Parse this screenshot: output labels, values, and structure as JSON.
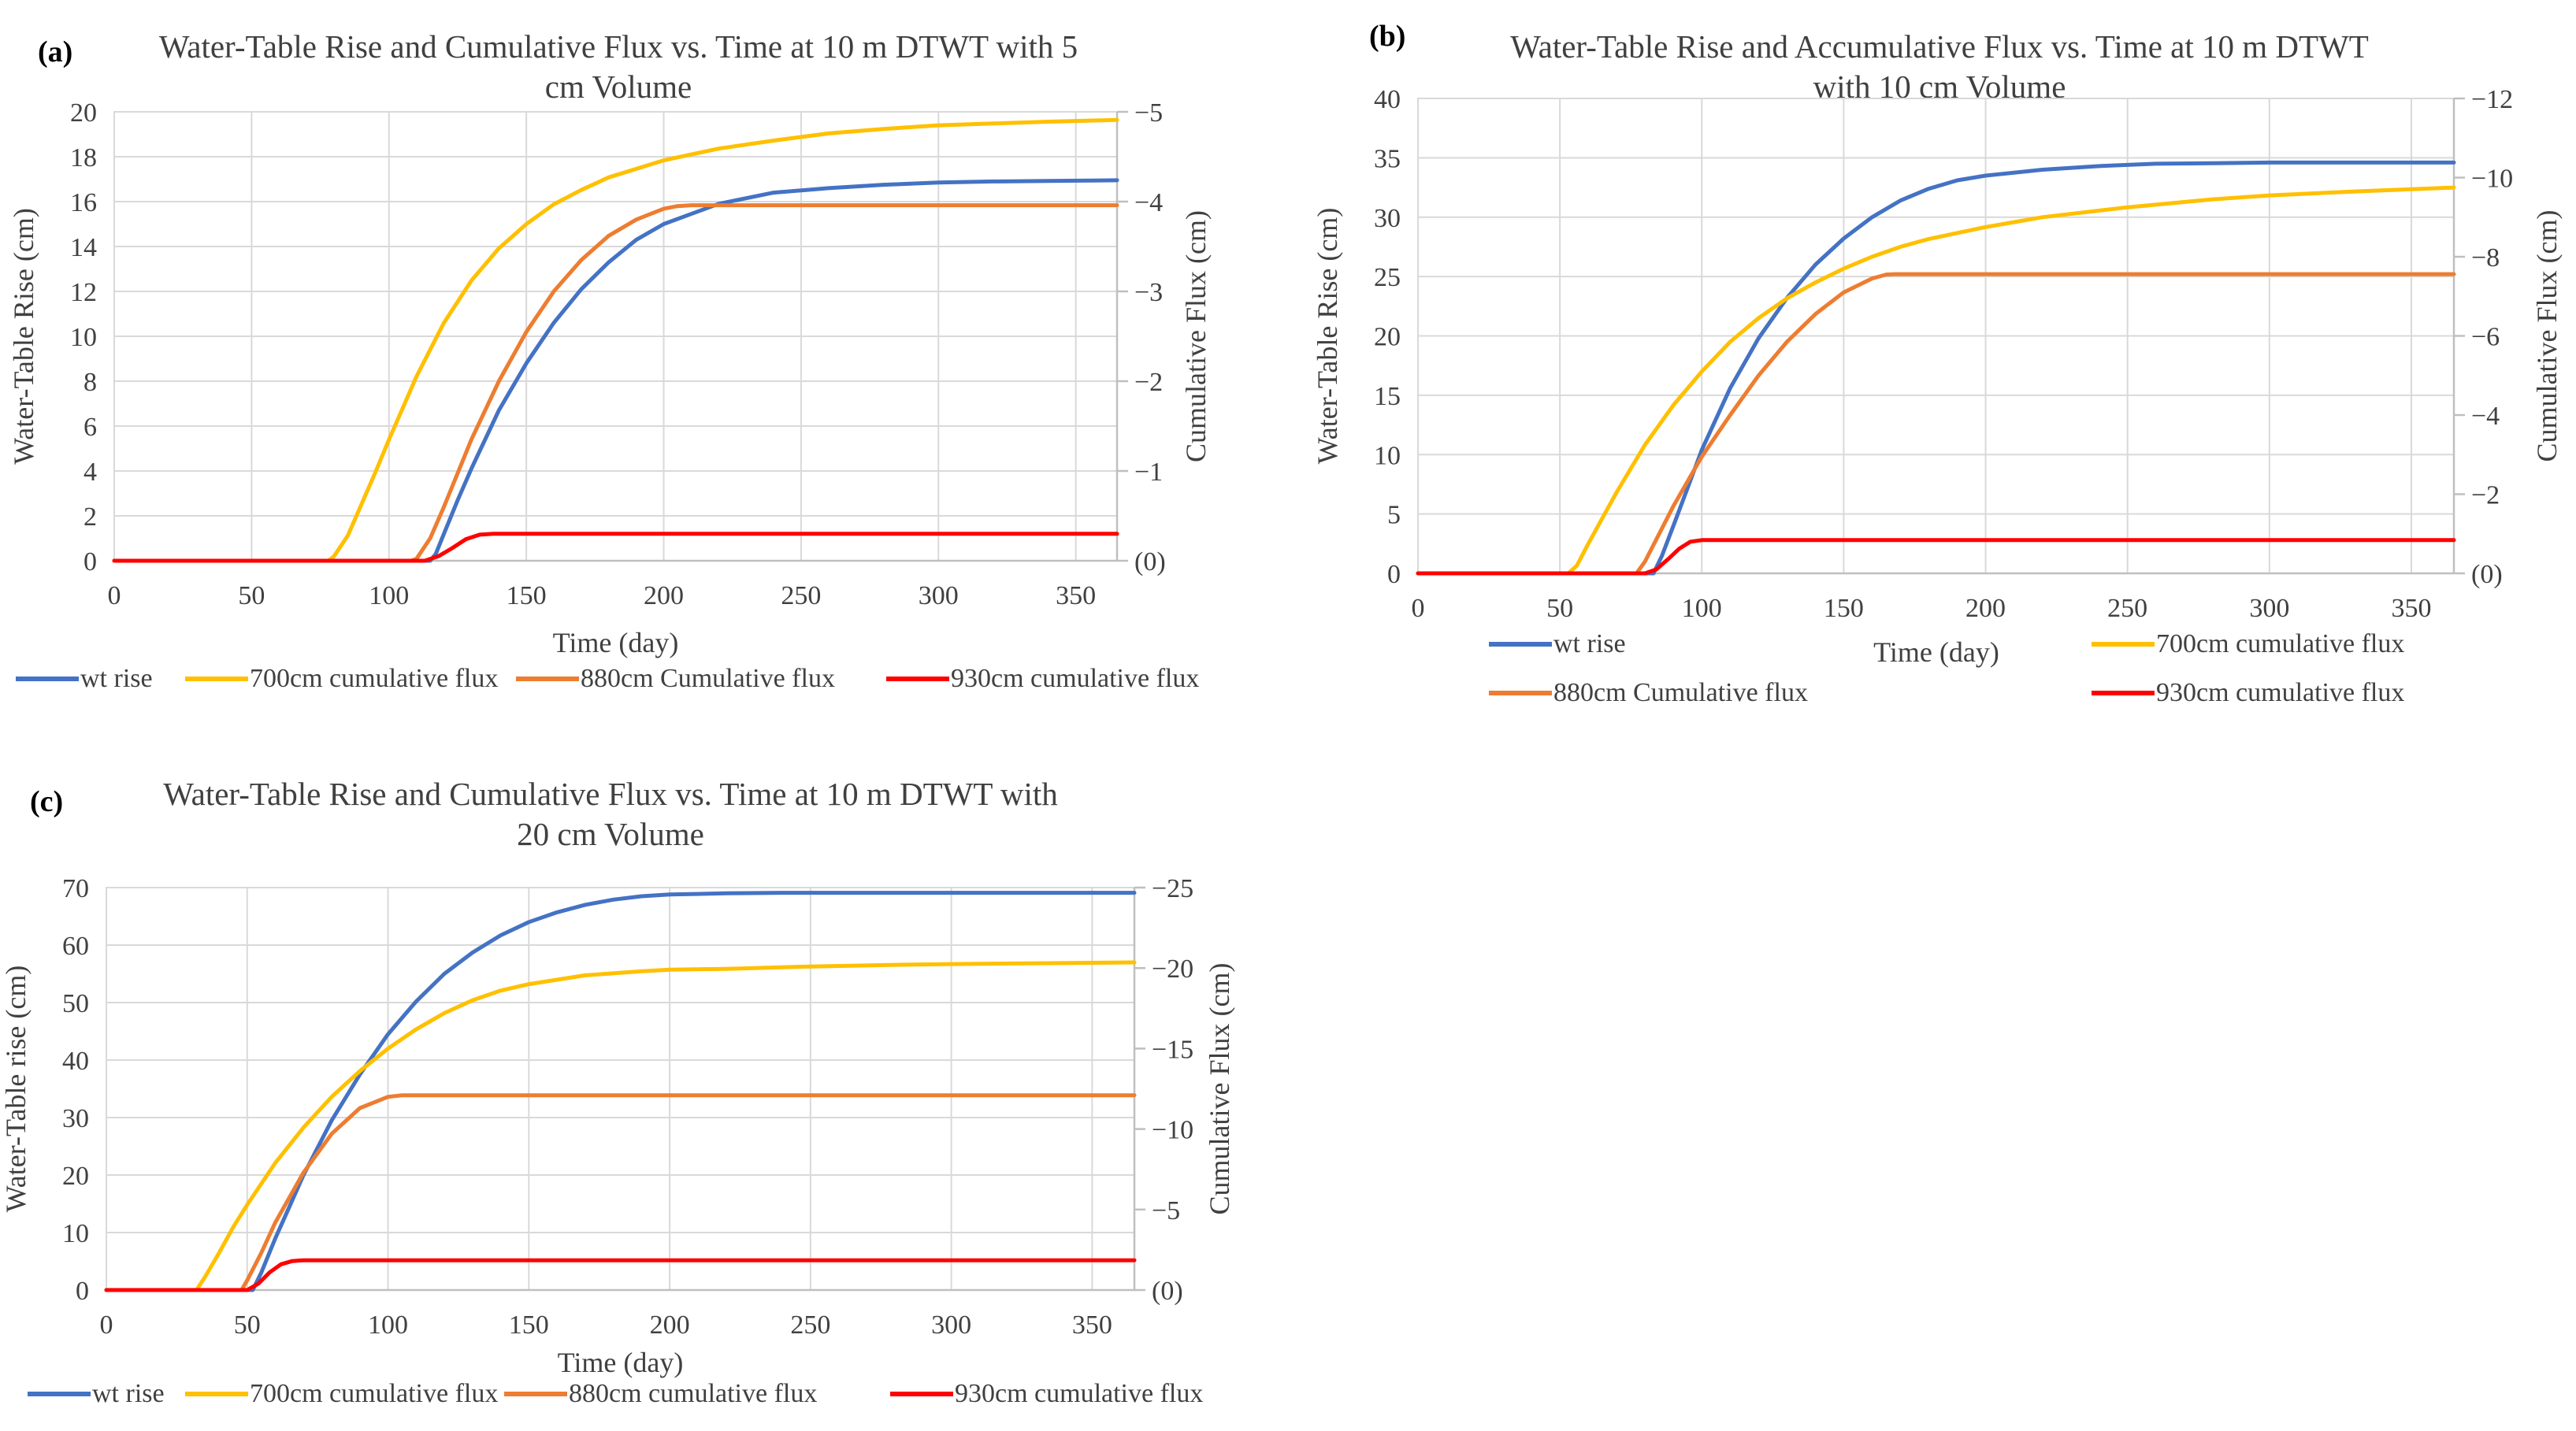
{
  "colors": {
    "wt": "#4472C4",
    "f700": "#FFC000",
    "f880": "#ED7D31",
    "f930": "#FF0000",
    "grid": "#D9D9D9",
    "axis": "#BFBFBF",
    "text": "#404040"
  },
  "chart_data": [
    {
      "type": "line",
      "panel_label": "(a)",
      "title": "Water-Table Rise and Cumulative Flux vs. Time at 10 m DTWT with 5 cm Volume",
      "title_lines": [
        "Water-Table Rise and Cumulative Flux vs. Time at 10 m DTWT with 5",
        "cm Volume"
      ],
      "xlabel": "Time (day)",
      "ylabel": "Water-Table Rise (cm)",
      "y2label": "Cumulative Flux (cm)",
      "xlim": [
        0,
        365
      ],
      "ylim": [
        0,
        20
      ],
      "y2lim": [
        0,
        -5
      ],
      "xticks": [
        0,
        50,
        100,
        150,
        200,
        250,
        300,
        350
      ],
      "yticks": [
        0,
        2,
        4,
        6,
        8,
        10,
        12,
        14,
        16,
        18,
        20
      ],
      "y2ticks": [
        0,
        -1,
        -2,
        -3,
        -4,
        -5
      ],
      "y2ticklabels": [
        "(0)",
        "−1",
        "−2",
        "−3",
        "−4",
        "−5"
      ],
      "grid": true,
      "legend_position": "bottom",
      "series": [
        {
          "name": "wt rise",
          "axis": "y1",
          "color_key": "wt",
          "x": [
            0,
            115,
            117,
            120,
            125,
            130,
            140,
            150,
            160,
            170,
            180,
            190,
            200,
            220,
            240,
            260,
            280,
            300,
            320,
            340,
            365
          ],
          "y": [
            0,
            0,
            0.3,
            1.2,
            2.7,
            4.1,
            6.7,
            8.8,
            10.6,
            12.1,
            13.3,
            14.3,
            15.0,
            15.9,
            16.4,
            16.6,
            16.75,
            16.85,
            16.9,
            16.92,
            16.95
          ]
        },
        {
          "name": "700cm cumulative flux",
          "axis": "y2",
          "color_key": "f700",
          "x": [
            0,
            78,
            80,
            85,
            90,
            95,
            100,
            110,
            120,
            130,
            140,
            150,
            160,
            170,
            180,
            200,
            220,
            240,
            260,
            280,
            300,
            320,
            340,
            365
          ],
          "y": [
            0,
            0,
            -0.05,
            -0.28,
            -0.63,
            -0.98,
            -1.35,
            -2.05,
            -2.65,
            -3.12,
            -3.48,
            -3.75,
            -3.97,
            -4.13,
            -4.27,
            -4.46,
            -4.59,
            -4.68,
            -4.76,
            -4.81,
            -4.85,
            -4.87,
            -4.89,
            -4.91
          ]
        },
        {
          "name": "880cm Cumulative flux",
          "axis": "y2",
          "color_key": "f880",
          "x": [
            0,
            108,
            110,
            115,
            120,
            130,
            140,
            150,
            160,
            170,
            180,
            190,
            200,
            205,
            210,
            365
          ],
          "y": [
            0,
            0,
            -0.02,
            -0.25,
            -0.6,
            -1.35,
            -2.0,
            -2.55,
            -3.0,
            -3.35,
            -3.62,
            -3.8,
            -3.92,
            -3.95,
            -3.96,
            -3.96
          ]
        },
        {
          "name": "930cm cumulative flux",
          "axis": "y2",
          "color_key": "f930",
          "x": [
            0,
            113,
            118,
            123,
            128,
            133,
            138,
            365
          ],
          "y": [
            0,
            0,
            -0.05,
            -0.14,
            -0.24,
            -0.29,
            -0.3,
            -0.3
          ]
        }
      ]
    },
    {
      "type": "line",
      "panel_label": "(b)",
      "title": "Water-Table Rise and Accumulative Flux vs. Time at 10 m DTWT with 10 cm Volume",
      "title_lines": [
        "Water-Table Rise and Accumulative Flux vs. Time at 10 m DTWT",
        "with 10 cm Volume"
      ],
      "xlabel": "Time (day)",
      "ylabel": "Water-Table Rise (cm)",
      "y2label": "Cumulative Flux (cm)",
      "xlim": [
        0,
        365
      ],
      "ylim": [
        0,
        40
      ],
      "y2lim": [
        0,
        -12
      ],
      "xticks": [
        0,
        50,
        100,
        150,
        200,
        250,
        300,
        350
      ],
      "yticks": [
        0,
        5,
        10,
        15,
        20,
        25,
        30,
        35,
        40
      ],
      "y2ticks": [
        0,
        -2,
        -4,
        -6,
        -8,
        -10,
        -12
      ],
      "y2ticklabels": [
        "(0)",
        "−2",
        "−4",
        "−6",
        "−8",
        "−10",
        "−12"
      ],
      "grid": true,
      "legend_position": "bottom",
      "series": [
        {
          "name": "wt rise",
          "axis": "y1",
          "color_key": "wt",
          "x": [
            0,
            83,
            86,
            90,
            95,
            100,
            110,
            120,
            130,
            140,
            150,
            160,
            170,
            180,
            190,
            200,
            220,
            240,
            260,
            280,
            300,
            320,
            340,
            365
          ],
          "y": [
            0,
            0,
            1.5,
            4,
            7.2,
            10.4,
            15.6,
            19.8,
            23.2,
            26.0,
            28.2,
            30.0,
            31.4,
            32.4,
            33.1,
            33.5,
            34.0,
            34.3,
            34.5,
            34.55,
            34.6,
            34.6,
            34.6,
            34.6
          ]
        },
        {
          "name": "700cm cumulative flux",
          "axis": "y2",
          "color_key": "f700",
          "x": [
            0,
            53,
            56,
            60,
            65,
            70,
            80,
            90,
            100,
            110,
            120,
            130,
            140,
            150,
            160,
            170,
            180,
            200,
            220,
            250,
            280,
            300,
            330,
            365
          ],
          "y": [
            0,
            0,
            -0.2,
            -0.75,
            -1.4,
            -2.05,
            -3.25,
            -4.25,
            -5.1,
            -5.85,
            -6.45,
            -6.95,
            -7.35,
            -7.7,
            -8.0,
            -8.25,
            -8.45,
            -8.75,
            -9.0,
            -9.25,
            -9.45,
            -9.55,
            -9.65,
            -9.75
          ]
        },
        {
          "name": "880cm Cumulative flux",
          "axis": "y2",
          "color_key": "f880",
          "x": [
            0,
            77,
            80,
            85,
            90,
            100,
            110,
            120,
            130,
            140,
            150,
            160,
            165,
            168,
            365
          ],
          "y": [
            0,
            0,
            -0.3,
            -1.0,
            -1.7,
            -2.95,
            -4.0,
            -5.0,
            -5.85,
            -6.55,
            -7.1,
            -7.45,
            -7.55,
            -7.56,
            -7.56
          ]
        },
        {
          "name": "930cm cumulative flux",
          "axis": "y2",
          "color_key": "f930",
          "x": [
            0,
            80,
            84,
            88,
            92,
            96,
            100,
            365
          ],
          "y": [
            0,
            0,
            -0.1,
            -0.35,
            -0.62,
            -0.8,
            -0.84,
            -0.84
          ]
        }
      ]
    },
    {
      "type": "line",
      "panel_label": "(c)",
      "title": "Water-Table Rise and Cumulative Flux vs. Time at 10 m DTWT with 20 cm Volume",
      "title_lines": [
        "Water-Table Rise and Cumulative Flux vs. Time at 10 m DTWT with",
        "20 cm Volume"
      ],
      "xlabel": "Time (day)",
      "ylabel": "Water-Table rise (cm)",
      "y2label": "Cumulative Flux (cm)",
      "xlim": [
        0,
        365
      ],
      "ylim": [
        0,
        70
      ],
      "y2lim": [
        0,
        -25
      ],
      "xticks": [
        0,
        50,
        100,
        150,
        200,
        250,
        300,
        350
      ],
      "yticks": [
        0,
        10,
        20,
        30,
        40,
        50,
        60,
        70
      ],
      "y2ticks": [
        0,
        -5,
        -10,
        -15,
        -20,
        -25
      ],
      "y2ticklabels": [
        "(0)",
        "−5",
        "−10",
        "−15",
        "−20",
        "−25"
      ],
      "grid": true,
      "legend_position": "bottom",
      "series": [
        {
          "name": "wt rise",
          "axis": "y1",
          "color_key": "wt",
          "x": [
            0,
            52,
            55,
            60,
            65,
            70,
            80,
            90,
            100,
            110,
            120,
            130,
            140,
            150,
            160,
            170,
            180,
            190,
            200,
            220,
            240,
            260,
            300,
            365
          ],
          "y": [
            0,
            0,
            3,
            9,
            14.5,
            20,
            29.5,
            37.5,
            44.5,
            50.2,
            55,
            58.7,
            61.7,
            64,
            65.7,
            67,
            67.9,
            68.5,
            68.8,
            69.0,
            69.1,
            69.1,
            69.1,
            69.1
          ]
        },
        {
          "name": "700cm cumulative flux",
          "axis": "y2",
          "color_key": "f700",
          "x": [
            0,
            32,
            35,
            40,
            45,
            50,
            60,
            70,
            80,
            90,
            100,
            110,
            120,
            130,
            140,
            150,
            170,
            190,
            200,
            220,
            250,
            280,
            300,
            330,
            365
          ],
          "y": [
            0,
            0,
            -0.8,
            -2.3,
            -3.9,
            -5.3,
            -7.9,
            -10.1,
            -12,
            -13.6,
            -15,
            -16.2,
            -17.2,
            -18,
            -18.6,
            -19,
            -19.55,
            -19.8,
            -19.9,
            -19.95,
            -20.1,
            -20.2,
            -20.25,
            -20.3,
            -20.35
          ]
        },
        {
          "name": "880cm cumulative flux",
          "axis": "y2",
          "color_key": "f880",
          "x": [
            0,
            48,
            50,
            55,
            60,
            70,
            80,
            90,
            100,
            105,
            110,
            365
          ],
          "y": [
            0,
            0,
            -0.6,
            -2.3,
            -4.2,
            -7.3,
            -9.7,
            -11.3,
            -12.0,
            -12.1,
            -12.1,
            -12.1
          ]
        },
        {
          "name": "930cm cumulative flux",
          "axis": "y2",
          "color_key": "f930",
          "x": [
            0,
            50,
            54,
            58,
            62,
            66,
            70,
            365
          ],
          "y": [
            0,
            0,
            -0.4,
            -1.1,
            -1.6,
            -1.8,
            -1.85,
            -1.85
          ]
        }
      ]
    }
  ]
}
